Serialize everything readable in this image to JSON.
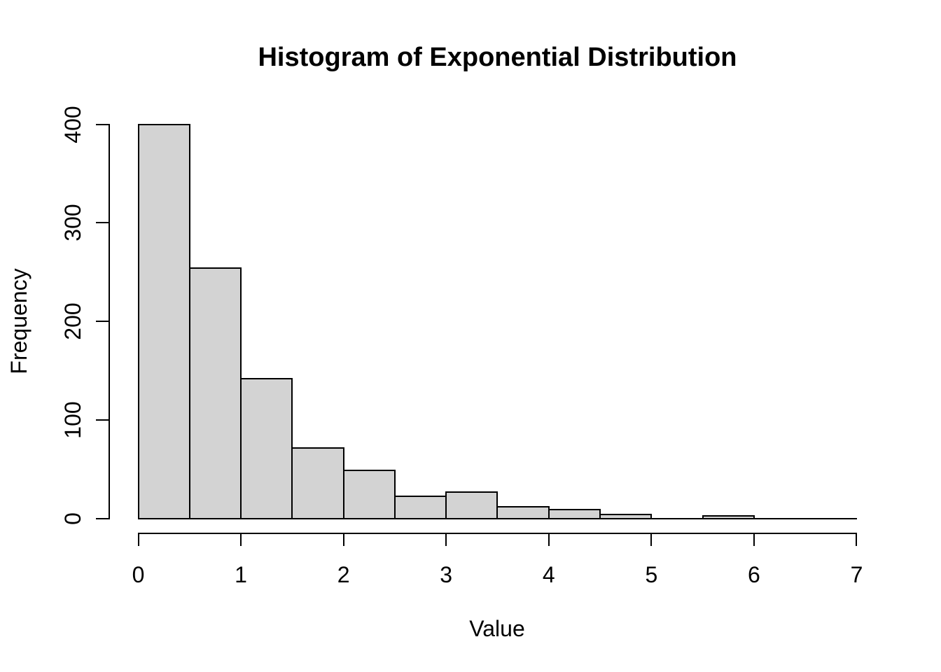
{
  "figure": {
    "background": "#ffffff",
    "text_color": "#000000"
  },
  "chart_data": {
    "type": "bar",
    "subtype": "histogram",
    "title": "Histogram of Exponential Distribution",
    "xlabel": "Value",
    "ylabel": "Frequency",
    "xlim": [
      0,
      7
    ],
    "ylim": [
      0,
      400
    ],
    "x_ticks": [
      0,
      1,
      2,
      3,
      4,
      5,
      6,
      7
    ],
    "y_ticks": [
      0,
      100,
      200,
      300,
      400
    ],
    "bin_width": 0.5,
    "bin_edges": [
      0,
      0.5,
      1,
      1.5,
      2,
      2.5,
      3,
      3.5,
      4,
      4.5,
      5,
      5.5,
      6,
      6.5,
      7
    ],
    "counts": [
      400,
      254,
      142,
      72,
      49,
      23,
      27,
      12,
      9,
      4,
      0,
      3,
      0,
      0
    ],
    "bar_fill": "#d3d3d3",
    "bar_border": "#000000",
    "grid": false,
    "legend": false
  }
}
